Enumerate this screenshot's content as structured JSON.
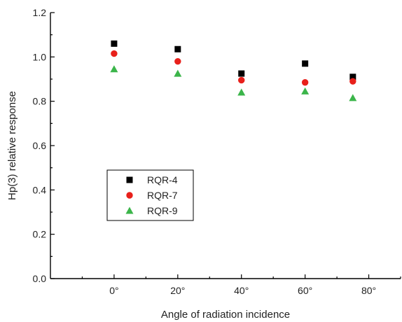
{
  "chart_data": {
    "type": "scatter",
    "xlabel": "Angle of radiation incidence",
    "ylabel": "Hp(3) relative response",
    "xlim": [
      -20,
      90
    ],
    "ylim": [
      0.0,
      1.2
    ],
    "x_ticks": [
      0,
      20,
      40,
      60,
      80
    ],
    "x_tick_labels": [
      "0°",
      "20°",
      "40°",
      "60°",
      "80°"
    ],
    "y_ticks": [
      0.0,
      0.2,
      0.4,
      0.6,
      0.8,
      1.0,
      1.2
    ],
    "y_tick_labels": [
      "0.0",
      "0.2",
      "0.4",
      "0.6",
      "0.8",
      "1.0",
      "1.2"
    ],
    "x": [
      0,
      20,
      40,
      60,
      75
    ],
    "legend_position": "center-left",
    "grid": false,
    "series": [
      {
        "name": "RQR-4",
        "marker": "square",
        "color": "#000000",
        "values": [
          1.06,
          1.035,
          0.925,
          0.97,
          0.91
        ]
      },
      {
        "name": "RQR-7",
        "marker": "circle",
        "color": "#e8201b",
        "values": [
          1.015,
          0.98,
          0.895,
          0.885,
          0.89
        ]
      },
      {
        "name": "RQR-9",
        "marker": "triangle",
        "color": "#3bb54a",
        "values": [
          0.945,
          0.925,
          0.84,
          0.845,
          0.815
        ]
      }
    ]
  }
}
